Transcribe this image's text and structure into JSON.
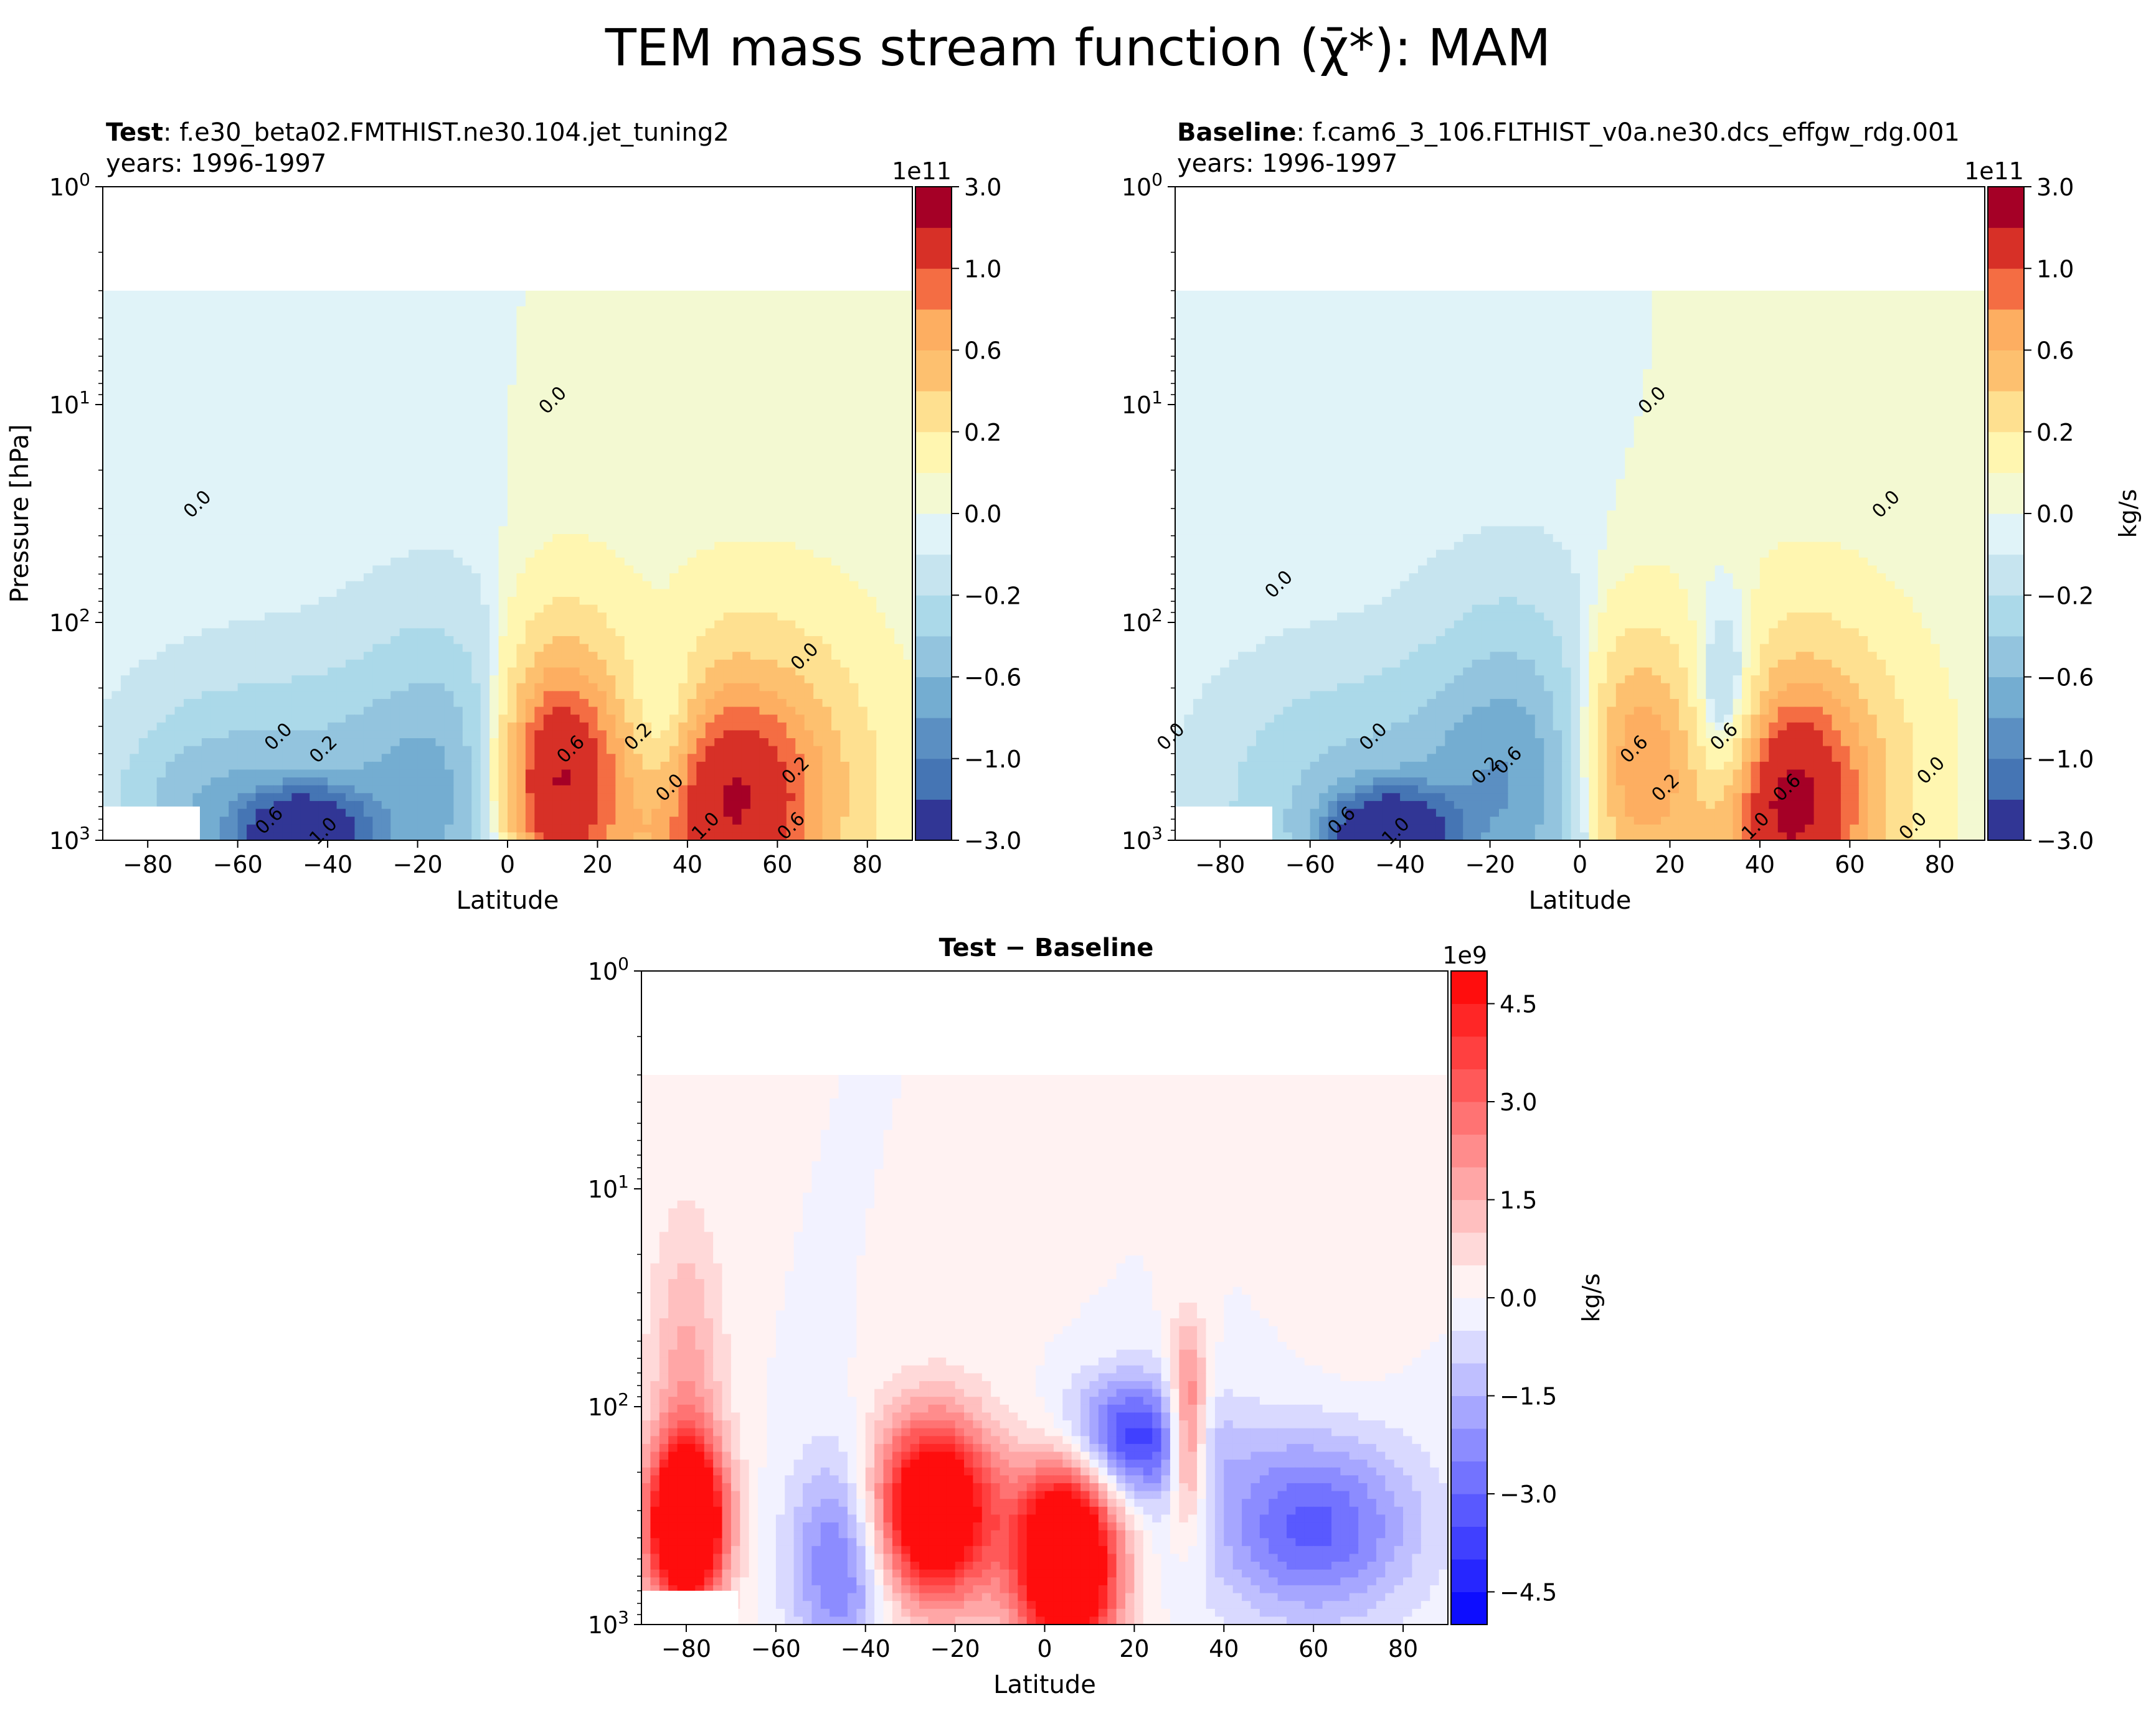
{
  "figure": {
    "suptitle": "TEM mass stream function (χ̄*): MAM"
  },
  "panels": {
    "test": {
      "title_bold": "Test",
      "title_rest": ": f.e30_beta02.FMTHIST.ne30.104.jet_tuning2",
      "subtitle": "years: 1996-1997",
      "cbar_exp": "1e11"
    },
    "baseline": {
      "title_bold": "Baseline",
      "title_rest": ": f.cam6_3_106.FLTHIST_v0a.ne30.dcs_effgw_rdg.001",
      "subtitle": "years: 1996-1997",
      "cbar_exp": "1e11"
    },
    "diff": {
      "title": "Test − Baseline",
      "cbar_exp": "1e9"
    }
  },
  "chart_data": [
    {
      "type": "heatmap",
      "panel": "test",
      "xlabel": "Latitude",
      "ylabel": "Pressure [hPa]",
      "xlim": [
        -90,
        90
      ],
      "ylim_hpa": [
        1000,
        1
      ],
      "yscale": "log",
      "xticks": [
        -80,
        -60,
        -40,
        -20,
        0,
        20,
        40,
        60,
        80
      ],
      "ytick_labels": [
        {
          "base": "10",
          "exp": "0"
        },
        {
          "base": "10",
          "exp": "1"
        },
        {
          "base": "10",
          "exp": "2"
        },
        {
          "base": "10",
          "exp": "3"
        }
      ],
      "colorbar": {
        "ticks": [
          "3.0",
          "1.0",
          "0.6",
          "0.2",
          "0.0",
          "−0.2",
          "−0.6",
          "−1.0",
          "−3.0"
        ],
        "levels": [
          -3.0,
          -1.4,
          -1.0,
          -0.8,
          -0.6,
          -0.4,
          -0.2,
          -0.05,
          0.0,
          0.05,
          0.2,
          0.4,
          0.6,
          0.8,
          1.0,
          1.4,
          3.0
        ],
        "label": ""
      },
      "data_top_hpa": 3,
      "features": [
        {
          "lat": 10,
          "p": 600,
          "value": 0.9,
          "dlat": 9,
          "dlogp": 0.35
        },
        {
          "lat": 12,
          "p": 400,
          "value": 0.6,
          "dlat": 10,
          "dlogp": 0.45
        },
        {
          "lat": 48,
          "p": 700,
          "value": 1.0,
          "dlat": 14,
          "dlogp": 0.35
        },
        {
          "lat": 55,
          "p": 500,
          "value": 0.5,
          "dlat": 18,
          "dlogp": 0.5
        },
        {
          "lat": 35,
          "p": 350,
          "value": -0.5,
          "dlat": 6,
          "dlogp": 0.3
        },
        {
          "lat": -15,
          "p": 600,
          "value": -0.6,
          "dlat": 14,
          "dlogp": 0.5
        },
        {
          "lat": -50,
          "p": 700,
          "value": -0.5,
          "dlat": 20,
          "dlogp": 0.4
        },
        {
          "lat": -45,
          "p": 950,
          "value": -2.5,
          "dlat": 8,
          "dlogp": 0.12
        },
        {
          "lat": -70,
          "p": 800,
          "value": -0.3,
          "dlat": 12,
          "dlogp": 0.3
        }
      ],
      "contour_labels": [
        {
          "lat": -68,
          "p": 30,
          "text": "0.0"
        },
        {
          "lat": 11,
          "p": 10,
          "text": "0.0"
        },
        {
          "lat": 67,
          "p": 150,
          "text": "0.0"
        },
        {
          "lat": -50,
          "p": 350,
          "text": "0.0"
        },
        {
          "lat": -40,
          "p": 400,
          "text": "0.2"
        },
        {
          "lat": -52,
          "p": 850,
          "text": "0.6"
        },
        {
          "lat": -40,
          "p": 950,
          "text": "1.0"
        },
        {
          "lat": 15,
          "p": 400,
          "text": "0.6"
        },
        {
          "lat": 30,
          "p": 350,
          "text": "0.2"
        },
        {
          "lat": 37,
          "p": 600,
          "text": "0.0"
        },
        {
          "lat": 65,
          "p": 500,
          "text": "0.2"
        },
        {
          "lat": 45,
          "p": 900,
          "text": "1.0"
        },
        {
          "lat": 64,
          "p": 900,
          "text": "0.6"
        }
      ]
    },
    {
      "type": "heatmap",
      "panel": "baseline",
      "xlabel": "Latitude",
      "ylabel": "",
      "xlim": [
        -90,
        90
      ],
      "ylim_hpa": [
        1000,
        1
      ],
      "yscale": "log",
      "xticks": [
        -80,
        -60,
        -40,
        -20,
        0,
        20,
        40,
        60,
        80
      ],
      "ytick_labels": [
        {
          "base": "10",
          "exp": "0"
        },
        {
          "base": "10",
          "exp": "1"
        },
        {
          "base": "10",
          "exp": "2"
        },
        {
          "base": "10",
          "exp": "3"
        }
      ],
      "colorbar": {
        "ticks": [
          "3.0",
          "1.0",
          "0.6",
          "0.2",
          "0.0",
          "−0.2",
          "−0.6",
          "−1.0",
          "−3.0"
        ],
        "levels": [
          -3.0,
          -1.4,
          -1.0,
          -0.8,
          -0.6,
          -0.4,
          -0.2,
          -0.05,
          0.0,
          0.05,
          0.2,
          0.4,
          0.6,
          0.8,
          1.0,
          1.4,
          3.0
        ],
        "label": "kg/s"
      },
      "data_top_hpa": 3,
      "features": [
        {
          "lat": 12,
          "p": 450,
          "value": 0.8,
          "dlat": 9,
          "dlogp": 0.4
        },
        {
          "lat": 45,
          "p": 700,
          "value": 1.1,
          "dlat": 12,
          "dlogp": 0.35
        },
        {
          "lat": 50,
          "p": 500,
          "value": 0.5,
          "dlat": 16,
          "dlogp": 0.5
        },
        {
          "lat": 33,
          "p": 350,
          "value": -0.7,
          "dlat": 6,
          "dlogp": 0.35
        },
        {
          "lat": -15,
          "p": 500,
          "value": -0.7,
          "dlat": 14,
          "dlogp": 0.5
        },
        {
          "lat": -50,
          "p": 700,
          "value": -0.5,
          "dlat": 20,
          "dlogp": 0.4
        },
        {
          "lat": -42,
          "p": 950,
          "value": -2.5,
          "dlat": 8,
          "dlogp": 0.12
        }
      ],
      "contour_labels": [
        {
          "lat": -66,
          "p": 70,
          "text": "0.0"
        },
        {
          "lat": -90,
          "p": 350,
          "text": "0.0"
        },
        {
          "lat": 17,
          "p": 10,
          "text": "0.0"
        },
        {
          "lat": 69,
          "p": 30,
          "text": "0.0"
        },
        {
          "lat": -45,
          "p": 350,
          "text": "0.0"
        },
        {
          "lat": -20,
          "p": 500,
          "text": "0.2"
        },
        {
          "lat": -15,
          "p": 450,
          "text": "0.6"
        },
        {
          "lat": -52,
          "p": 850,
          "text": "0.6"
        },
        {
          "lat": -40,
          "p": 950,
          "text": "1.0"
        },
        {
          "lat": 13,
          "p": 400,
          "text": "0.6"
        },
        {
          "lat": 20,
          "p": 600,
          "text": "0.2"
        },
        {
          "lat": 33,
          "p": 350,
          "text": "0.6"
        },
        {
          "lat": 47,
          "p": 600,
          "text": "0.6"
        },
        {
          "lat": 40,
          "p": 900,
          "text": "1.0"
        },
        {
          "lat": 79,
          "p": 500,
          "text": "0.0"
        },
        {
          "lat": 75,
          "p": 900,
          "text": "0.0"
        }
      ]
    },
    {
      "type": "heatmap",
      "panel": "diff",
      "xlabel": "Latitude",
      "ylabel": "",
      "xlim": [
        -90,
        90
      ],
      "ylim_hpa": [
        1000,
        1
      ],
      "yscale": "log",
      "xticks": [
        -80,
        -60,
        -40,
        -20,
        0,
        20,
        40,
        60,
        80
      ],
      "ytick_labels": [
        {
          "base": "10",
          "exp": "0"
        },
        {
          "base": "10",
          "exp": "1"
        },
        {
          "base": "10",
          "exp": "2"
        },
        {
          "base": "10",
          "exp": "3"
        }
      ],
      "colorbar": {
        "ticks": [
          "4.5",
          "3.0",
          "1.5",
          "0.0",
          "−1.5",
          "−3.0",
          "−4.5"
        ],
        "vmin": -5,
        "vmax": 5,
        "nlevels": 20,
        "label": "kg/s"
      },
      "data_top_hpa": 3,
      "features": [
        {
          "lat": -80,
          "p": 350,
          "value": 8,
          "dlat": 6,
          "dlogp": 0.25
        },
        {
          "lat": -80,
          "p": 100,
          "value": 1.8,
          "dlat": 6,
          "dlogp": 0.6
        },
        {
          "lat": -25,
          "p": 300,
          "value": 7,
          "dlat": 10,
          "dlogp": 0.3
        },
        {
          "lat": 32,
          "p": 130,
          "value": 4,
          "dlat": 3,
          "dlogp": 0.3
        },
        {
          "lat": 5,
          "p": 500,
          "value": 8,
          "dlat": 8,
          "dlogp": 0.35
        },
        {
          "lat": 60,
          "p": 350,
          "value": -3.2,
          "dlat": 16,
          "dlogp": 0.3
        },
        {
          "lat": 18,
          "p": 140,
          "value": -4,
          "dlat": 12,
          "dlogp": 0.2
        },
        {
          "lat": -45,
          "p": 500,
          "value": -3,
          "dlat": 8,
          "dlogp": 0.35
        },
        {
          "lat": 68,
          "p": 15,
          "value": 0.4,
          "dlat": 8,
          "dlogp": 0.7
        }
      ]
    }
  ]
}
